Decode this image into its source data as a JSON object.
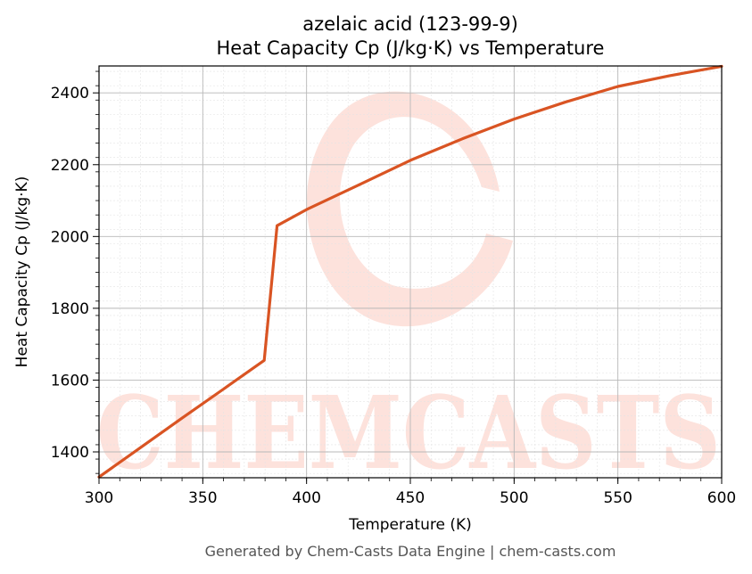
{
  "chart_data": {
    "type": "line",
    "title": "azelaic acid (123-99-9)",
    "subtitle": "Heat Capacity Cp (J/kg·K) vs Temperature",
    "xlabel": "Temperature (K)",
    "ylabel": "Heat Capacity Cp (J/kg·K)",
    "xlim": [
      300,
      600
    ],
    "ylim": [
      1328,
      2475
    ],
    "xticks": [
      300,
      350,
      400,
      450,
      500,
      550,
      600
    ],
    "yticks": [
      1400,
      1600,
      1800,
      2000,
      2200,
      2400
    ],
    "grid": true,
    "line_color": "#d95423",
    "series": [
      {
        "x": [
          300,
          320,
          340,
          360,
          379.6,
          385.8,
          400,
          425,
          450,
          475,
          500,
          525,
          550,
          575,
          600
        ],
        "y": [
          1330,
          1412,
          1494,
          1575,
          1655,
          2030,
          2075,
          2143,
          2212,
          2272,
          2327,
          2375,
          2418,
          2448,
          2474
        ]
      }
    ]
  },
  "watermark": "CHEMCASTS",
  "footer": "Generated by Chem-Casts Data Engine | chem-casts.com"
}
